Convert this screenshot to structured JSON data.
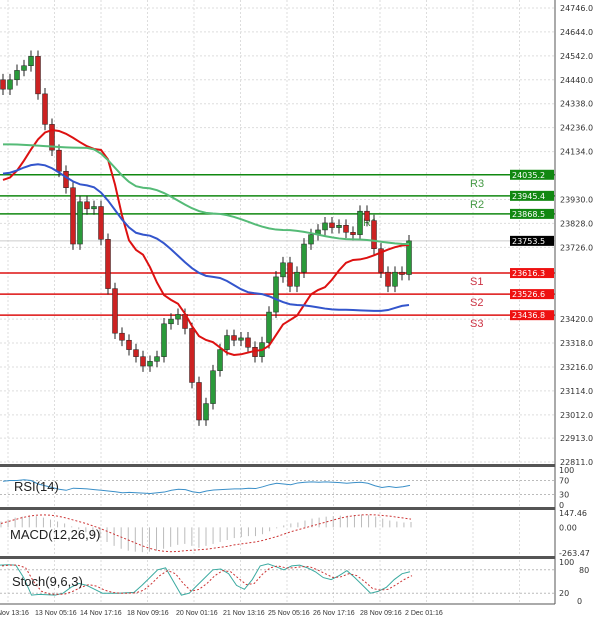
{
  "chart_data": {
    "type": "candlestick",
    "price_axis_ticks": [
      "24746.0",
      "24644.0",
      "24542.0",
      "24440.0",
      "24338.0",
      "24236.0",
      "24134.0",
      "23930.0",
      "23828.0",
      "23726.0",
      "23420.0",
      "23318.0",
      "23216.0",
      "23114.0",
      "23012.0",
      "22913.0",
      "22811.0"
    ],
    "ylim": [
      22811.0,
      24746.0
    ],
    "time_labels": [
      "Nov 13:16",
      "13 Nov 05:16",
      "14 Nov 17:16",
      "18 Nov 09:16",
      "20 Nov 01:16",
      "21 Nov 13:16",
      "25 Nov 05:16",
      "26 Nov 17:16",
      "28 Nov 09:16",
      "2 Dec 01:16"
    ],
    "closes": [
      24400,
      24440,
      24480,
      24500,
      24540,
      24380,
      24250,
      24140,
      24050,
      23980,
      23740,
      23920,
      23890,
      23900,
      23760,
      23550,
      23360,
      23330,
      23290,
      23260,
      23220,
      23240,
      23260,
      23400,
      23420,
      23440,
      23380,
      23150,
      22990,
      23060,
      23200,
      23290,
      23350,
      23330,
      23340,
      23300,
      23260,
      23320,
      23450,
      23600,
      23660,
      23560,
      23620,
      23740,
      23780,
      23800,
      23830,
      23810,
      23820,
      23790,
      23780,
      23880,
      23840,
      23720,
      23620,
      23560,
      23620,
      23610,
      23753.5
    ],
    "moving_averages": [
      {
        "color": "#dd1111",
        "points": [
          [
            0,
            24013
          ],
          [
            7,
            24226
          ],
          [
            14,
            24141
          ],
          [
            19,
            23715
          ],
          [
            24,
            23502
          ],
          [
            29,
            23331
          ],
          [
            33,
            23267
          ],
          [
            37,
            23288
          ],
          [
            41,
            23416
          ],
          [
            45,
            23544
          ],
          [
            50,
            23672
          ],
          [
            58,
            23736
          ]
        ]
      },
      {
        "color": "#55bb77",
        "points": [
          [
            0,
            24165
          ],
          [
            12,
            24150
          ],
          [
            20,
            23980
          ],
          [
            30,
            23870
          ],
          [
            40,
            23800
          ],
          [
            50,
            23760
          ],
          [
            58,
            23740
          ]
        ]
      },
      {
        "color": "#3355cc",
        "points": [
          [
            0,
            24040
          ],
          [
            5,
            24080
          ],
          [
            12,
            23990
          ],
          [
            20,
            23780
          ],
          [
            30,
            23600
          ],
          [
            36,
            23530
          ],
          [
            42,
            23480
          ],
          [
            48,
            23460
          ],
          [
            54,
            23455
          ],
          [
            58,
            23480
          ]
        ]
      }
    ],
    "levels": [
      {
        "name": "R3",
        "value": "24035.2",
        "price": 24035.2,
        "color": "#118811"
      },
      {
        "name": "R2",
        "value": "23945.4",
        "price": 23945.4,
        "color": "#118811"
      },
      {
        "name": "R1",
        "value": "23868.5",
        "price": 23868.5,
        "color": "#118811"
      },
      {
        "name": "S1",
        "value": "23616.3",
        "price": 23616.3,
        "color": "#dd1111"
      },
      {
        "name": "S2",
        "value": "23526.6",
        "price": 23526.6,
        "color": "#dd1111"
      },
      {
        "name": "S3",
        "value": "23436.8",
        "price": 23436.8,
        "color": "#dd1111"
      }
    ],
    "current_price": "23753.5",
    "rsi": {
      "label": "RSI(14)",
      "ticks": [
        "100",
        "70",
        "30",
        "0"
      ],
      "values": [
        68,
        70,
        70,
        72,
        70,
        60,
        55,
        50,
        45,
        42,
        48,
        47,
        46,
        44,
        42,
        40,
        38,
        35,
        36,
        35,
        34,
        33,
        35,
        37,
        42,
        45,
        44,
        38,
        35,
        40,
        43,
        44,
        45,
        46,
        46,
        48,
        47,
        52,
        58,
        62,
        60,
        58,
        63,
        65,
        66,
        65,
        66,
        65,
        64,
        62,
        64,
        65,
        62,
        55,
        50,
        53,
        50,
        52,
        56
      ]
    },
    "macd": {
      "label": "MACD(12,26,9)",
      "ticks": [
        "147.46",
        "0.00",
        "-263.47"
      ],
      "ylim": [
        -263.47,
        147.46
      ],
      "hist": [
        60,
        80,
        100,
        110,
        120,
        115,
        100,
        80,
        60,
        40,
        10,
        -20,
        -50,
        -80,
        -110,
        -150,
        -190,
        -220,
        -240,
        -250,
        -255,
        -250,
        -240,
        -220,
        -200,
        -180,
        -170,
        -190,
        -210,
        -190,
        -170,
        -150,
        -130,
        -110,
        -100,
        -90,
        -90,
        -70,
        -40,
        -10,
        20,
        40,
        50,
        70,
        90,
        100,
        110,
        115,
        120,
        120,
        125,
        130,
        125,
        110,
        90,
        70,
        60,
        50,
        55
      ],
      "signal": [
        40,
        60,
        80,
        100,
        115,
        125,
        128,
        125,
        115,
        100,
        80,
        60,
        40,
        15,
        -10,
        -40,
        -70,
        -100,
        -130,
        -160,
        -190,
        -215,
        -235,
        -245,
        -250,
        -248,
        -240,
        -235,
        -230,
        -225,
        -215,
        -205,
        -195,
        -180,
        -170,
        -160,
        -150,
        -135,
        -115,
        -95,
        -70,
        -45,
        -25,
        -5,
        15,
        35,
        55,
        75,
        95,
        110,
        120,
        128,
        130,
        128,
        122,
        115,
        105,
        95,
        85
      ]
    },
    "stoch": {
      "label": "Stoch(9,6,3)",
      "ticks": [
        "100",
        "80",
        "20",
        "0"
      ],
      "k": [
        92,
        93,
        92,
        60,
        15,
        17,
        16,
        15,
        20,
        35,
        45,
        40,
        30,
        20,
        20,
        20,
        21,
        22,
        40,
        60,
        80,
        85,
        50,
        15,
        20,
        40,
        60,
        80,
        82,
        70,
        40,
        30,
        55,
        90,
        95,
        88,
        80,
        90,
        92,
        85,
        75,
        60,
        55,
        65,
        78,
        60,
        40,
        20,
        25,
        35,
        55,
        70,
        75
      ],
      "d": [
        90,
        92,
        92,
        85,
        50,
        25,
        18,
        17,
        18,
        25,
        35,
        42,
        38,
        28,
        22,
        20,
        20,
        21,
        28,
        45,
        65,
        78,
        70,
        45,
        25,
        30,
        45,
        65,
        78,
        75,
        58,
        42,
        45,
        68,
        85,
        90,
        85,
        85,
        88,
        88,
        80,
        70,
        60,
        62,
        70,
        65,
        50,
        32,
        28,
        30,
        42,
        55,
        65
      ]
    }
  }
}
